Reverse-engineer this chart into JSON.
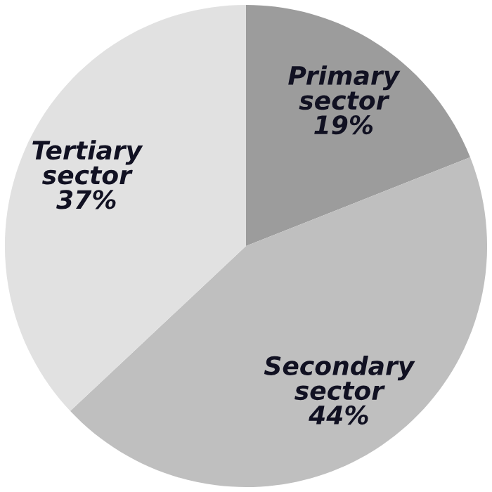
{
  "chart_data": {
    "type": "pie",
    "categories": [
      "Primary sector",
      "Secondary sector",
      "Tertiary sector"
    ],
    "values": [
      19,
      44,
      37
    ],
    "colors": [
      "#9c9c9c",
      "#bfbfbf",
      "#e1e1e1"
    ],
    "value_labels": [
      "19%",
      "44%",
      "37%"
    ]
  }
}
